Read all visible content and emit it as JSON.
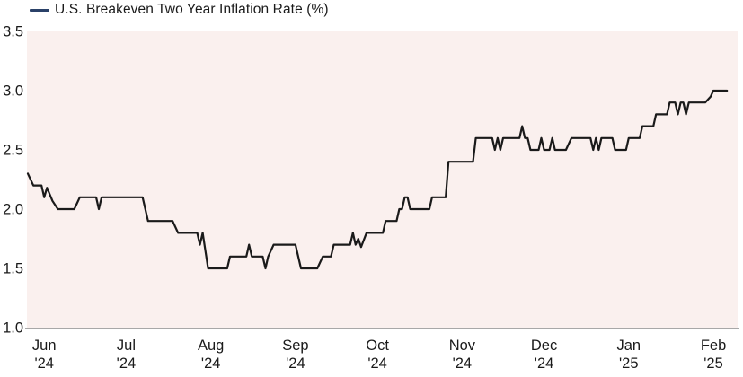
{
  "colors": {
    "legend_dash": "#2a4168",
    "series_line": "#1a1a1a",
    "plot_background": "#faf0ee",
    "axis_line": "#a8a8a8",
    "text": "#1a1a1a",
    "page_background": "#ffffff"
  },
  "legend": {
    "label": "U.S. Breakeven Two Year Inflation Rate (%)"
  },
  "chart_data": {
    "type": "line",
    "title": "U.S. Breakeven Two Year Inflation Rate (%)",
    "ylabel": "",
    "xlabel": "",
    "ylim": [
      1.0,
      3.5
    ],
    "grid": false,
    "legend_position": "top-left",
    "y_axis": {
      "tick_labels": [
        "3.5",
        "3.0",
        "2.5",
        "2.0",
        "1.5",
        "1.0"
      ],
      "tick_values": [
        3.5,
        3.0,
        2.5,
        2.0,
        1.5,
        1.0
      ]
    },
    "x_axis": {
      "note": "day = days since first plotted point (late May 2024); ticks mark month starts",
      "ticks": [
        {
          "month": "Jun",
          "year": "'24",
          "day": 6
        },
        {
          "month": "Jul",
          "year": "'24",
          "day": 36
        },
        {
          "month": "Aug",
          "year": "'24",
          "day": 67
        },
        {
          "month": "Sep",
          "year": "'24",
          "day": 98
        },
        {
          "month": "Oct",
          "year": "'24",
          "day": 128
        },
        {
          "month": "Nov",
          "year": "'24",
          "day": 159
        },
        {
          "month": "Dec",
          "year": "'24",
          "day": 189
        },
        {
          "month": "Jan",
          "year": "'25",
          "day": 220
        },
        {
          "month": "Feb",
          "year": "'25",
          "day": 251
        }
      ]
    },
    "series": [
      {
        "name": "U.S. Breakeven Two Year Inflation Rate (%)",
        "color": "#1a1a1a",
        "points": [
          [
            0,
            2.3
          ],
          [
            2,
            2.2
          ],
          [
            5,
            2.2
          ],
          [
            6,
            2.1
          ],
          [
            7,
            2.18
          ],
          [
            9,
            2.07
          ],
          [
            11,
            2.0
          ],
          [
            17,
            2.0
          ],
          [
            19,
            2.1
          ],
          [
            25,
            2.1
          ],
          [
            26,
            2.0
          ],
          [
            27,
            2.1
          ],
          [
            42,
            2.1
          ],
          [
            44,
            1.9
          ],
          [
            53,
            1.9
          ],
          [
            55,
            1.8
          ],
          [
            62,
            1.8
          ],
          [
            63,
            1.7
          ],
          [
            64,
            1.8
          ],
          [
            66,
            1.5
          ],
          [
            73,
            1.5
          ],
          [
            74,
            1.6
          ],
          [
            80,
            1.6
          ],
          [
            81,
            1.7
          ],
          [
            82,
            1.6
          ],
          [
            86,
            1.6
          ],
          [
            87,
            1.5
          ],
          [
            88,
            1.6
          ],
          [
            90,
            1.7
          ],
          [
            98,
            1.7
          ],
          [
            100,
            1.5
          ],
          [
            106,
            1.5
          ],
          [
            108,
            1.6
          ],
          [
            111,
            1.6
          ],
          [
            112,
            1.7
          ],
          [
            118,
            1.7
          ],
          [
            119,
            1.8
          ],
          [
            120,
            1.7
          ],
          [
            121,
            1.75
          ],
          [
            122,
            1.68
          ],
          [
            124,
            1.8
          ],
          [
            130,
            1.8
          ],
          [
            131,
            1.9
          ],
          [
            135,
            1.9
          ],
          [
            136,
            2.0
          ],
          [
            137,
            2.0
          ],
          [
            138,
            2.1
          ],
          [
            139,
            2.1
          ],
          [
            140,
            2.0
          ],
          [
            147,
            2.0
          ],
          [
            148,
            2.1
          ],
          [
            153,
            2.1
          ],
          [
            154,
            2.4
          ],
          [
            163,
            2.4
          ],
          [
            164,
            2.6
          ],
          [
            170,
            2.6
          ],
          [
            171,
            2.5
          ],
          [
            172,
            2.6
          ],
          [
            173,
            2.5
          ],
          [
            174,
            2.6
          ],
          [
            180,
            2.6
          ],
          [
            181,
            2.7
          ],
          [
            182,
            2.6
          ],
          [
            183,
            2.6
          ],
          [
            184,
            2.5
          ],
          [
            187,
            2.5
          ],
          [
            188,
            2.6
          ],
          [
            189,
            2.5
          ],
          [
            191,
            2.5
          ],
          [
            192,
            2.6
          ],
          [
            193,
            2.5
          ],
          [
            197,
            2.5
          ],
          [
            199,
            2.6
          ],
          [
            206,
            2.6
          ],
          [
            207,
            2.5
          ],
          [
            208,
            2.6
          ],
          [
            209,
            2.5
          ],
          [
            210,
            2.6
          ],
          [
            214,
            2.6
          ],
          [
            215,
            2.5
          ],
          [
            219,
            2.5
          ],
          [
            220,
            2.6
          ],
          [
            224,
            2.6
          ],
          [
            225,
            2.7
          ],
          [
            229,
            2.7
          ],
          [
            230,
            2.8
          ],
          [
            234,
            2.8
          ],
          [
            235,
            2.9
          ],
          [
            237,
            2.9
          ],
          [
            238,
            2.8
          ],
          [
            239,
            2.9
          ],
          [
            240,
            2.9
          ],
          [
            241,
            2.8
          ],
          [
            242,
            2.9
          ],
          [
            248,
            2.9
          ],
          [
            250,
            2.95
          ],
          [
            251,
            3.0
          ],
          [
            256,
            3.0
          ]
        ]
      }
    ]
  }
}
